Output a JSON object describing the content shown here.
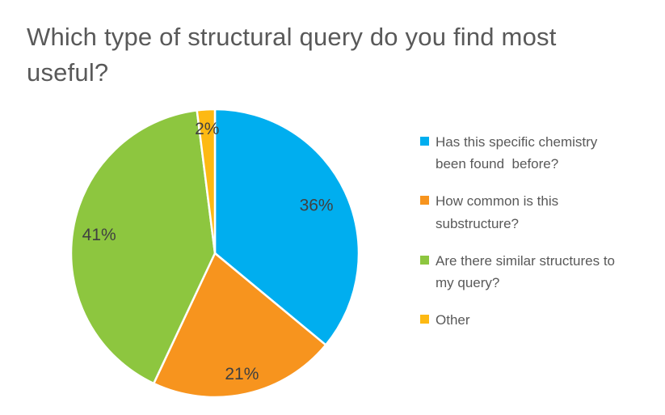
{
  "title": "Which type of structural query do you find most useful?",
  "colors": {
    "title_text": "#595959",
    "legend_text": "#595959",
    "slice_label_text": "#404040",
    "background": "#ffffff",
    "slice_border": "#ffffff"
  },
  "chart_data": {
    "type": "pie",
    "title": "Which type of structural query do you find most useful?",
    "categories": [
      "Has this specific chemistry been found  before?",
      "How common is this substructure?",
      "Are there similar structures to my query?",
      "Other"
    ],
    "values": [
      36,
      21,
      41,
      2
    ],
    "labels": [
      "36%",
      "21%",
      "41%",
      "2%"
    ],
    "colors": [
      "#00AEEF",
      "#F7941E",
      "#8DC63F",
      "#FDB913"
    ],
    "legend_position": "right",
    "start_angle_deg": 0,
    "direction": "clockwise",
    "grid": false
  }
}
